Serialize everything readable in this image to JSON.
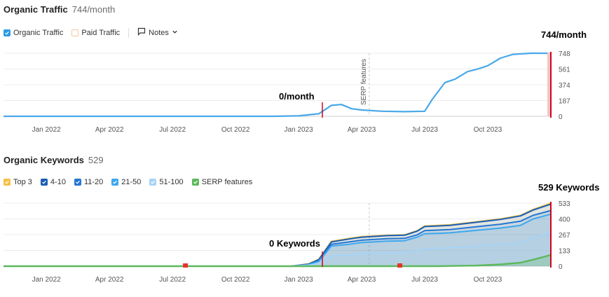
{
  "traffic": {
    "title": "Organic Traffic",
    "value": "744/month",
    "legend": {
      "organic": {
        "label": "Organic Traffic",
        "color": "#2b9be6",
        "checked": true
      },
      "paid": {
        "label": "Paid Traffic",
        "color": "#f5a623",
        "checked": false
      },
      "notes_label": "Notes"
    },
    "callout_start": "0/month",
    "callout_end": "744/month",
    "serp_label": "SERP features"
  },
  "keywords": {
    "title": "Organic Keywords",
    "value": "529",
    "legend": [
      {
        "label": "Top 3",
        "color": "#f5c041"
      },
      {
        "label": "4-10",
        "color": "#1a5fb4"
      },
      {
        "label": "11-20",
        "color": "#2477d4"
      },
      {
        "label": "21-50",
        "color": "#3da7ee"
      },
      {
        "label": "51-100",
        "color": "#a8d3f5"
      },
      {
        "label": "SERP features",
        "color": "#5cb85c"
      }
    ],
    "callout_start": "0 Keywords",
    "callout_end": "529 Keywords"
  },
  "chart_data": [
    {
      "type": "line",
      "title": "Organic Traffic",
      "x_tick_labels": [
        "Jan 2022",
        "Apr 2022",
        "Jul 2022",
        "Oct 2022",
        "Jan 2023",
        "Apr 2023",
        "Jul 2023",
        "Oct 2023"
      ],
      "y_tick_labels": [
        "748",
        "561",
        "374",
        "187",
        "0"
      ],
      "ylim": [
        0,
        748
      ],
      "series": [
        {
          "name": "Organic Traffic",
          "color": "#4aa8e8",
          "x": [
            2021.83,
            2022.0,
            2022.5,
            2022.9,
            2023.0,
            2023.08,
            2023.13,
            2023.17,
            2023.21,
            2023.25,
            2023.33,
            2023.42,
            2023.5,
            2023.53,
            2023.58,
            2023.62,
            2023.67,
            2023.71,
            2023.75,
            2023.8,
            2023.85,
            2023.92,
            2024.0
          ],
          "values": [
            0,
            0,
            0,
            0,
            5,
            30,
            130,
            140,
            90,
            75,
            60,
            55,
            60,
            200,
            400,
            440,
            530,
            560,
            600,
            690,
            735,
            748,
            748
          ]
        }
      ]
    },
    {
      "type": "area",
      "title": "Organic Keywords",
      "x_tick_labels": [
        "Jan 2022",
        "Apr 2022",
        "Jul 2022",
        "Oct 2022",
        "Jan 2023",
        "Apr 2023",
        "Jul 2023",
        "Oct 2023"
      ],
      "y_tick_labels": [
        "533",
        "400",
        "267",
        "133",
        "0"
      ],
      "ylim": [
        0,
        533
      ],
      "x": [
        2021.83,
        2022.5,
        2022.97,
        2023.04,
        2023.08,
        2023.13,
        2023.2,
        2023.25,
        2023.35,
        2023.42,
        2023.47,
        2023.5,
        2023.55,
        2023.6,
        2023.7,
        2023.8,
        2023.88,
        2023.93,
        2024.0
      ],
      "series": [
        {
          "name": "Top 3",
          "color": "#f5c041",
          "values": [
            0,
            0,
            0,
            20,
            60,
            210,
            235,
            250,
            262,
            265,
            300,
            340,
            345,
            350,
            375,
            400,
            430,
            480,
            533
          ]
        },
        {
          "name": "4-10",
          "color": "#1a5fb4",
          "values": [
            0,
            0,
            0,
            18,
            55,
            205,
            230,
            245,
            258,
            262,
            296,
            335,
            340,
            345,
            370,
            395,
            425,
            475,
            525
          ]
        },
        {
          "name": "11-20",
          "color": "#2477d4",
          "values": [
            0,
            0,
            0,
            15,
            45,
            185,
            205,
            220,
            232,
            235,
            265,
            300,
            305,
            310,
            332,
            355,
            380,
            430,
            470
          ]
        },
        {
          "name": "21-50",
          "color": "#3da7ee",
          "values": [
            0,
            0,
            0,
            12,
            40,
            170,
            185,
            200,
            212,
            215,
            245,
            275,
            278,
            282,
            302,
            322,
            345,
            400,
            440
          ]
        },
        {
          "name": "51-100",
          "color": "#a8d3f5",
          "values": [
            0,
            0,
            0,
            8,
            25,
            85,
            95,
            105,
            112,
            118,
            130,
            145,
            150,
            155,
            170,
            185,
            200,
            240,
            290
          ]
        },
        {
          "name": "SERP features",
          "color": "#5cb85c",
          "values": [
            0,
            0,
            0,
            0,
            0,
            0,
            0,
            0,
            0,
            0,
            0,
            0,
            0,
            2,
            5,
            15,
            30,
            55,
            95
          ]
        }
      ]
    }
  ]
}
